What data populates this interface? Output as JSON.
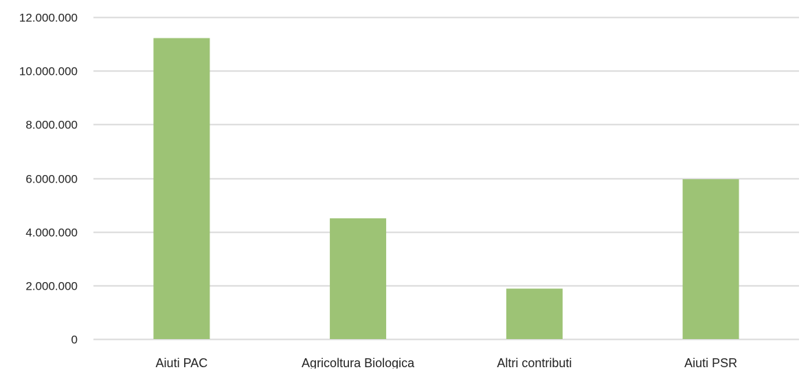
{
  "chart_data": {
    "type": "bar",
    "categories": [
      "Aiuti PAC",
      "Agricoltura Biologica",
      "Altri contributi",
      "Aiuti PSR"
    ],
    "values": [
      11220000,
      4500000,
      1880000,
      5960000
    ],
    "title": "",
    "xlabel": "",
    "ylabel": "",
    "ylim": [
      0,
      12000000
    ],
    "yticks": [
      0,
      2000000,
      4000000,
      6000000,
      8000000,
      10000000,
      12000000
    ],
    "ytick_labels": [
      "0",
      "2.000.000",
      "4.000.000",
      "6.000.000",
      "8.000.000",
      "10.000.000",
      "12.000.000"
    ],
    "grid": true,
    "legend": "none",
    "bar_color": "#9dc375",
    "grid_color": "#d9d9d9"
  }
}
